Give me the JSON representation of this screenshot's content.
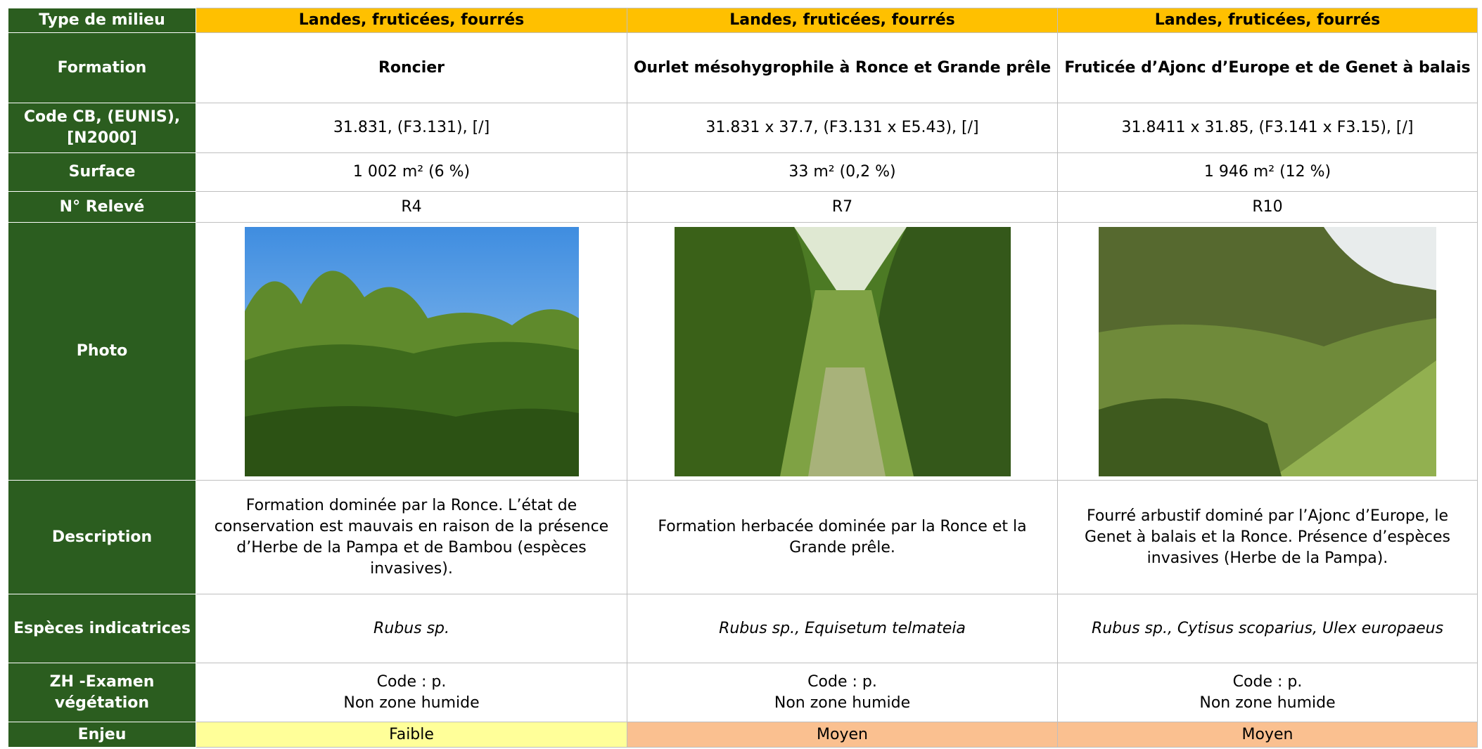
{
  "table": {
    "rows": [
      {
        "header": "Type de milieu",
        "cells": [
          "Landes, fruticées, fourrés",
          "Landes, fruticées, fourrés",
          "Landes, fruticées, fourrés"
        ]
      },
      {
        "header": "Formation",
        "cells": [
          "Roncier",
          "Ourlet mésohygrophile à Ronce et Grande prêle",
          "Fruticée d’Ajonc d’Europe et de Genet à balais"
        ]
      },
      {
        "header": "Code CB, (EUNIS), [N2000]",
        "cells": [
          "31.831, (F3.131), [/]",
          "31.831 x 37.7, (F3.131 x E5.43), [/]",
          "31.8411 x 31.85, (F3.141 x F3.15), [/]"
        ]
      },
      {
        "header": "Surface",
        "cells": [
          "1 002 m² (6 %)",
          "33 m² (0,2 %)",
          "1 946 m² (12 %)"
        ]
      },
      {
        "header": "N° Relevé",
        "cells": [
          "R4",
          "R7",
          "R10"
        ]
      },
      {
        "header": "Photo"
      },
      {
        "header": "Description",
        "cells": [
          "Formation dominée par la Ronce. L’état de conservation est mauvais en raison de la présence d’Herbe de la Pampa et de Bambou (espèces invasives).",
          "Formation herbacée dominée par la Ronce et la Grande prêle.",
          "Fourré arbustif dominé par l’Ajonc d’Europe, le Genet à balais et la Ronce. Présence d’espèces invasives (Herbe de la Pampa)."
        ]
      },
      {
        "header": "Espèces indicatrices",
        "cells": [
          "Rubus sp.",
          "Rubus sp., Equisetum telmateia",
          "Rubus sp., Cytisus scoparius, Ulex europaeus"
        ]
      },
      {
        "header": "ZH -Examen végétation",
        "cells": [
          {
            "code": "Code : p.",
            "status": "Non zone humide"
          },
          {
            "code": "Code : p.",
            "status": "Non zone humide"
          },
          {
            "code": "Code : p.",
            "status": "Non zone humide"
          }
        ]
      },
      {
        "header": "Enjeu",
        "cells": [
          "Faible",
          "Moyen",
          "Moyen"
        ]
      }
    ]
  }
}
